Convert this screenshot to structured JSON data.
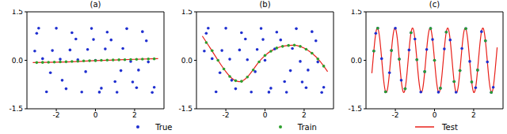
{
  "chart_data": [
    {
      "type": "scatter",
      "title": "(a)",
      "legend": "bottom",
      "xlim": [
        -3.5,
        3.5
      ],
      "xticks": [
        -2,
        0,
        2
      ],
      "ylim": [
        -1.5,
        1.5
      ],
      "yticks": [
        -1.5,
        {
          "value": 0,
          "label": "0.0"
        },
        1.5
      ],
      "series": [
        {
          "name": "True",
          "type": "scatter",
          "marker": "circle",
          "color": "#1f2fd0",
          "x": [
            -3.1,
            -3.0,
            -2.9,
            -2.7,
            -2.5,
            -2.3,
            -2.2,
            -2.0,
            -1.8,
            -1.7,
            -1.5,
            -1.3,
            -1.2,
            -1.0,
            -0.9,
            -0.7,
            -0.5,
            -0.4,
            -0.2,
            -0.1,
            0.0,
            0.2,
            0.3,
            0.5,
            0.6,
            0.8,
            1.0,
            1.1,
            1.3,
            1.4,
            1.6,
            1.8,
            1.9,
            2.1,
            2.2,
            2.4,
            2.6,
            2.7,
            2.9,
            3.0
          ],
          "values": [
            0.286,
            0.837,
            0.993,
            0.051,
            -0.976,
            -0.383,
            0.302,
            0.991,
            0.034,
            -0.618,
            -0.88,
            0.319,
            0.855,
            0.657,
            0.017,
            -0.982,
            -0.351,
            0.335,
            0.985,
            0.644,
            0,
            -0.985,
            -0.863,
            0.351,
            0.872,
            0.631,
            -0.657,
            -0.988,
            -0.319,
            0.367,
            0.979,
            -0.034,
            -0.67,
            -0.846,
            -0.302,
            0.887,
            0.604,
            -0.051,
            -0.993,
            -0.837
          ]
        },
        {
          "name": "Train",
          "type": "scatter",
          "marker": "circle",
          "color": "#2ca02c",
          "x": [
            -3.0,
            -2.7,
            -2.4,
            -2.1,
            -1.8,
            -1.5,
            -1.2,
            -0.9,
            -0.6,
            -0.3,
            0.0,
            0.3,
            0.6,
            0.9,
            1.2,
            1.5,
            1.8,
            2.1,
            2.4,
            2.7,
            3.0
          ],
          "values": [
            -0.07,
            -0.065,
            -0.06,
            -0.055,
            -0.05,
            -0.045,
            -0.035,
            -0.03,
            -0.02,
            -0.015,
            -0.01,
            0.0,
            0.005,
            0.01,
            0.015,
            0.02,
            0.025,
            0.03,
            0.035,
            0.04,
            0.045
          ]
        },
        {
          "name": "Test",
          "type": "line",
          "line_style": "solid",
          "color": "#e8201a",
          "x": [
            -3.2,
            -2.0,
            -1.0,
            0.0,
            1.0,
            2.0,
            3.2
          ],
          "values": [
            -0.07,
            -0.06,
            -0.04,
            -0.01,
            0.01,
            0.03,
            0.05
          ]
        }
      ]
    },
    {
      "type": "scatter",
      "title": "(b)",
      "xlim": [
        -3.5,
        3.5
      ],
      "xticks": [
        -2,
        0,
        2
      ],
      "ylim": [
        -1.5,
        1.5
      ],
      "yticks": [
        -1.5,
        {
          "value": 0,
          "label": "0.0"
        },
        1.5
      ],
      "series": [
        {
          "name": "True",
          "type": "scatter",
          "marker": "circle",
          "color": "#1f2fd0",
          "x": [
            -3.1,
            -3.0,
            -2.9,
            -2.7,
            -2.5,
            -2.3,
            -2.2,
            -2.0,
            -1.8,
            -1.7,
            -1.5,
            -1.3,
            -1.2,
            -1.0,
            -0.9,
            -0.7,
            -0.5,
            -0.4,
            -0.2,
            -0.1,
            0.0,
            0.2,
            0.3,
            0.5,
            0.6,
            0.8,
            1.0,
            1.1,
            1.3,
            1.4,
            1.6,
            1.8,
            1.9,
            2.1,
            2.2,
            2.4,
            2.6,
            2.7,
            2.9,
            3.0
          ],
          "values": [
            0.286,
            0.837,
            0.993,
            0.051,
            -0.976,
            -0.383,
            0.302,
            0.991,
            0.034,
            -0.618,
            -0.88,
            0.319,
            0.855,
            0.657,
            0.017,
            -0.982,
            -0.351,
            0.335,
            0.985,
            0.644,
            0,
            -0.985,
            -0.863,
            0.351,
            0.872,
            0.631,
            -0.657,
            -0.988,
            -0.319,
            0.367,
            0.979,
            -0.034,
            -0.67,
            -0.846,
            -0.302,
            0.887,
            0.604,
            -0.051,
            -0.993,
            -0.837
          ]
        },
        {
          "name": "Train",
          "type": "scatter",
          "marker": "circle",
          "color": "#2ca02c",
          "x": [
            -3.0,
            -2.7,
            -2.4,
            -2.1,
            -1.8,
            -1.5,
            -1.2,
            -0.9,
            -0.6,
            -0.3,
            0.0,
            0.3,
            0.6,
            0.9,
            1.2,
            1.5,
            1.8,
            2.1,
            2.4,
            2.7,
            3.0
          ],
          "values": [
            0.55,
            0.3,
            0.0,
            -0.27,
            -0.5,
            -0.63,
            -0.65,
            -0.52,
            -0.3,
            -0.05,
            0.15,
            0.28,
            0.38,
            0.43,
            0.46,
            0.47,
            0.43,
            0.34,
            0.22,
            0.04,
            -0.18
          ]
        },
        {
          "name": "Test",
          "type": "line",
          "line_style": "solid",
          "color": "#e8201a",
          "x": [
            -3.2,
            -2.8,
            -2.4,
            -2.0,
            -1.6,
            -1.2,
            -0.8,
            -0.4,
            0.0,
            0.4,
            0.8,
            1.2,
            1.6,
            2.0,
            2.4,
            2.8,
            3.2
          ],
          "values": [
            0.75,
            0.38,
            0.0,
            -0.35,
            -0.6,
            -0.65,
            -0.45,
            -0.12,
            0.15,
            0.32,
            0.42,
            0.46,
            0.46,
            0.38,
            0.22,
            -0.02,
            -0.35
          ]
        }
      ]
    },
    {
      "type": "scatter",
      "title": "(c)",
      "xlim": [
        -3.5,
        3.5
      ],
      "xticks": [
        -2,
        0,
        2
      ],
      "ylim": [
        -1.5,
        1.5
      ],
      "yticks": [
        -1.5,
        {
          "value": 0,
          "label": "0.0"
        },
        1.5
      ],
      "series": [
        {
          "name": "True",
          "type": "scatter",
          "marker": "circle",
          "color": "#1f2fd0",
          "x": [
            -3.1,
            -3.0,
            -2.9,
            -2.7,
            -2.5,
            -2.3,
            -2.2,
            -2.0,
            -1.8,
            -1.7,
            -1.5,
            -1.3,
            -1.2,
            -1.0,
            -0.9,
            -0.7,
            -0.5,
            -0.4,
            -0.2,
            -0.1,
            0.0,
            0.2,
            0.3,
            0.5,
            0.6,
            0.8,
            1.0,
            1.1,
            1.3,
            1.4,
            1.6,
            1.8,
            1.9,
            2.1,
            2.2,
            2.4,
            2.6,
            2.7,
            2.9,
            3.0
          ],
          "values": [
            0.286,
            0.837,
            0.993,
            0.051,
            -0.976,
            -0.383,
            0.302,
            0.991,
            0.034,
            -0.618,
            -0.88,
            0.319,
            0.855,
            0.657,
            0.017,
            -0.982,
            -0.351,
            0.335,
            0.985,
            0.644,
            0,
            -0.985,
            -0.863,
            0.351,
            0.872,
            0.631,
            -0.657,
            -0.988,
            -0.319,
            0.367,
            0.979,
            -0.034,
            -0.67,
            -0.846,
            -0.302,
            0.887,
            0.604,
            -0.051,
            -0.993,
            -0.837
          ]
        },
        {
          "name": "Train",
          "type": "scatter",
          "marker": "circle",
          "color": "#2ca02c",
          "x": [
            -3.1,
            -2.9,
            -2.5,
            -2.2,
            -1.8,
            -1.5,
            -1.2,
            -0.9,
            -0.5,
            -0.2,
            0.0,
            0.3,
            0.6,
            1.0,
            1.3,
            1.6,
            1.9,
            2.2,
            2.6,
            2.9
          ],
          "values": [
            0.286,
            0.993,
            -0.976,
            0.302,
            0.034,
            -0.88,
            0.855,
            0.017,
            -0.351,
            0.985,
            0,
            -0.863,
            0.872,
            -0.657,
            -0.319,
            0.979,
            -0.67,
            -0.302,
            0.604,
            -0.993
          ]
        },
        {
          "name": "Test",
          "type": "line",
          "line_style": "solid",
          "color": "#e8201a",
          "x": [
            -3.2,
            -3.1,
            -3.0,
            -2.9,
            -2.8,
            -2.7,
            -2.6,
            -2.5,
            -2.4,
            -2.3,
            -2.2,
            -2.1,
            -2.0,
            -1.9,
            -1.8,
            -1.7,
            -1.6,
            -1.5,
            -1.4,
            -1.3,
            -1.2,
            -1.1,
            -1.0,
            -0.9,
            -0.8,
            -0.7,
            -0.6,
            -0.5,
            -0.4,
            -0.3,
            -0.2,
            -0.1,
            0.0,
            0.1,
            0.2,
            0.3,
            0.4,
            0.5,
            0.6,
            0.7,
            0.8,
            0.9,
            1.0,
            1.1,
            1.2,
            1.3,
            1.4,
            1.5,
            1.6,
            1.7,
            1.8,
            1.9,
            2.0,
            2.1,
            2.2,
            2.3,
            2.4,
            2.5,
            2.6,
            2.7,
            2.8,
            2.9,
            3.0,
            3.1,
            3.2
          ],
          "values": [
            -0.399,
            0.286,
            0.837,
            0.993,
            0.683,
            0.051,
            -0.604,
            -0.976,
            -0.887,
            -0.383,
            0.302,
            0.846,
            0.991,
            0.67,
            0.034,
            -0.618,
            -0.979,
            -0.88,
            -0.367,
            0.319,
            0.855,
            0.988,
            0.657,
            0.017,
            -0.631,
            -0.982,
            -0.872,
            -0.351,
            0.335,
            0.863,
            0.985,
            0.644,
            0,
            -0.644,
            -0.985,
            -0.863,
            -0.335,
            0.351,
            0.872,
            0.982,
            0.631,
            -0.017,
            -0.657,
            -0.988,
            -0.855,
            -0.319,
            0.367,
            0.88,
            0.979,
            0.618,
            -0.034,
            -0.67,
            -0.991,
            -0.846,
            -0.302,
            0.383,
            0.887,
            0.976,
            0.604,
            -0.051,
            -0.683,
            -0.993,
            -0.837,
            -0.286,
            0.399
          ]
        }
      ]
    }
  ]
}
